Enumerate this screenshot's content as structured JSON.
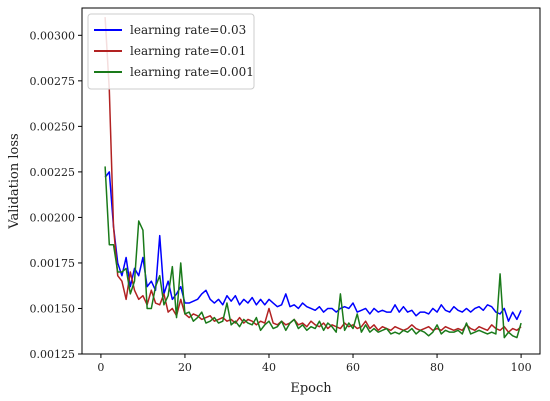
{
  "chart_data": {
    "type": "line",
    "title": "",
    "xlabel": "Epoch",
    "ylabel": "Validation loss",
    "xlim": [
      -4.5,
      104.5
    ],
    "ylim": [
      0.00125,
      0.00315
    ],
    "x_ticks": [
      0,
      20,
      40,
      60,
      80,
      100
    ],
    "y_ticks": [
      0.00125,
      0.0015,
      0.00175,
      0.002,
      0.00225,
      0.0025,
      0.00275,
      0.003
    ],
    "x_tick_labels": [
      "0",
      "20",
      "40",
      "60",
      "80",
      "100"
    ],
    "y_tick_labels": [
      "0.00125",
      "0.00150",
      "0.00175",
      "0.00200",
      "0.00225",
      "0.00250",
      "0.00275",
      "0.00300"
    ],
    "legend_position": "top-left",
    "grid": false,
    "series": [
      {
        "name": "learning rate=0.03",
        "color": "#0000ff",
        "x": [
          1,
          2,
          3,
          4,
          5,
          6,
          7,
          8,
          9,
          10,
          11,
          12,
          13,
          14,
          15,
          16,
          17,
          18,
          19,
          20,
          21,
          22,
          23,
          24,
          25,
          26,
          27,
          28,
          29,
          30,
          31,
          32,
          33,
          34,
          35,
          36,
          37,
          38,
          39,
          40,
          41,
          42,
          43,
          44,
          45,
          46,
          47,
          48,
          49,
          50,
          51,
          52,
          53,
          54,
          55,
          56,
          57,
          58,
          59,
          60,
          61,
          62,
          63,
          64,
          65,
          66,
          67,
          68,
          69,
          70,
          71,
          72,
          73,
          74,
          75,
          76,
          77,
          78,
          79,
          80,
          81,
          82,
          83,
          84,
          85,
          86,
          87,
          88,
          89,
          90,
          91,
          92,
          93,
          94,
          95,
          96,
          97,
          98,
          99,
          100
        ],
        "values": [
          0.00222,
          0.00225,
          0.00195,
          0.00175,
          0.00168,
          0.00178,
          0.00162,
          0.00172,
          0.00168,
          0.00178,
          0.00162,
          0.00165,
          0.0016,
          0.0019,
          0.00158,
          0.00165,
          0.00155,
          0.00158,
          0.00162,
          0.00153,
          0.00153,
          0.00154,
          0.00155,
          0.00158,
          0.0016,
          0.00155,
          0.00153,
          0.00155,
          0.00152,
          0.00157,
          0.00154,
          0.00157,
          0.00152,
          0.00155,
          0.00153,
          0.00156,
          0.00152,
          0.00155,
          0.00152,
          0.00155,
          0.00153,
          0.00151,
          0.00152,
          0.00158,
          0.00151,
          0.00152,
          0.0015,
          0.00153,
          0.00151,
          0.0015,
          0.00149,
          0.00151,
          0.00148,
          0.0015,
          0.0015,
          0.00148,
          0.0015,
          0.00151,
          0.0015,
          0.00153,
          0.00148,
          0.00149,
          0.0015,
          0.00147,
          0.0015,
          0.00148,
          0.00149,
          0.00148,
          0.00148,
          0.00152,
          0.00148,
          0.00151,
          0.00148,
          0.00149,
          0.00146,
          0.00148,
          0.00148,
          0.00147,
          0.0015,
          0.00148,
          0.00152,
          0.00149,
          0.00148,
          0.00151,
          0.00149,
          0.00148,
          0.0015,
          0.00148,
          0.0015,
          0.00151,
          0.00149,
          0.00152,
          0.00151,
          0.00148,
          0.00147,
          0.0015,
          0.00143,
          0.00148,
          0.00144,
          0.00149
        ]
      },
      {
        "name": "learning rate=0.01",
        "color": "#b22222",
        "x": [
          1,
          2,
          3,
          4,
          5,
          6,
          7,
          8,
          9,
          10,
          11,
          12,
          13,
          14,
          15,
          16,
          17,
          18,
          19,
          20,
          21,
          22,
          23,
          24,
          25,
          26,
          27,
          28,
          29,
          30,
          31,
          32,
          33,
          34,
          35,
          36,
          37,
          38,
          39,
          40,
          41,
          42,
          43,
          44,
          45,
          46,
          47,
          48,
          49,
          50,
          51,
          52,
          53,
          54,
          55,
          56,
          57,
          58,
          59,
          60,
          61,
          62,
          63,
          64,
          65,
          66,
          67,
          68,
          69,
          70,
          71,
          72,
          73,
          74,
          75,
          76,
          77,
          78,
          79,
          80,
          81,
          82,
          83,
          84,
          85,
          86,
          87,
          88,
          89,
          90,
          91,
          92,
          93,
          94,
          95,
          96,
          97,
          98,
          99,
          100
        ],
        "values": [
          0.0031,
          0.0027,
          0.00195,
          0.00168,
          0.00165,
          0.00155,
          0.0017,
          0.0016,
          0.00155,
          0.00157,
          0.00152,
          0.0016,
          0.00153,
          0.00152,
          0.00158,
          0.00148,
          0.0015,
          0.00146,
          0.00155,
          0.00147,
          0.00145,
          0.00147,
          0.00146,
          0.00144,
          0.00145,
          0.00146,
          0.00143,
          0.00144,
          0.00145,
          0.00143,
          0.00144,
          0.00142,
          0.00145,
          0.00142,
          0.00144,
          0.00143,
          0.00141,
          0.00143,
          0.00142,
          0.0015,
          0.00142,
          0.00141,
          0.00143,
          0.00141,
          0.00142,
          0.00144,
          0.00141,
          0.00142,
          0.0014,
          0.00143,
          0.00141,
          0.0014,
          0.00142,
          0.00139,
          0.00141,
          0.0014,
          0.00139,
          0.00142,
          0.0014,
          0.00141,
          0.00139,
          0.0014,
          0.00143,
          0.00139,
          0.00141,
          0.00138,
          0.0014,
          0.00139,
          0.00138,
          0.0014,
          0.00139,
          0.00138,
          0.00139,
          0.00141,
          0.00139,
          0.00138,
          0.00139,
          0.0014,
          0.00138,
          0.00139,
          0.00138,
          0.0014,
          0.00139,
          0.00138,
          0.00139,
          0.00138,
          0.00141,
          0.00139,
          0.00138,
          0.0014,
          0.00139,
          0.00138,
          0.00141,
          0.00139,
          0.00138,
          0.0014,
          0.00137,
          0.00139,
          0.00138,
          0.0014
        ]
      },
      {
        "name": "learning rate=0.001",
        "color": "#1a7a1a",
        "x": [
          1,
          2,
          3,
          4,
          5,
          6,
          7,
          8,
          9,
          10,
          11,
          12,
          13,
          14,
          15,
          16,
          17,
          18,
          19,
          20,
          21,
          22,
          23,
          24,
          25,
          26,
          27,
          28,
          29,
          30,
          31,
          32,
          33,
          34,
          35,
          36,
          37,
          38,
          39,
          40,
          41,
          42,
          43,
          44,
          45,
          46,
          47,
          48,
          49,
          50,
          51,
          52,
          53,
          54,
          55,
          56,
          57,
          58,
          59,
          60,
          61,
          62,
          63,
          64,
          65,
          66,
          67,
          68,
          69,
          70,
          71,
          72,
          73,
          74,
          75,
          76,
          77,
          78,
          79,
          80,
          81,
          82,
          83,
          84,
          85,
          86,
          87,
          88,
          89,
          90,
          91,
          92,
          93,
          94,
          95,
          96,
          97,
          98,
          99,
          100
        ],
        "values": [
          0.00228,
          0.00185,
          0.00185,
          0.0017,
          0.0017,
          0.00172,
          0.00158,
          0.00165,
          0.00198,
          0.00193,
          0.0015,
          0.0015,
          0.00162,
          0.00168,
          0.00152,
          0.00157,
          0.00173,
          0.00145,
          0.00175,
          0.00147,
          0.00148,
          0.00143,
          0.00145,
          0.00148,
          0.00142,
          0.00143,
          0.00145,
          0.00142,
          0.00143,
          0.00153,
          0.00141,
          0.00143,
          0.0014,
          0.00144,
          0.00142,
          0.00141,
          0.00145,
          0.00138,
          0.00141,
          0.00143,
          0.00139,
          0.0014,
          0.00143,
          0.00138,
          0.00142,
          0.00144,
          0.00139,
          0.00141,
          0.00138,
          0.0014,
          0.00139,
          0.00143,
          0.00138,
          0.00142,
          0.0014,
          0.00137,
          0.00158,
          0.00138,
          0.00142,
          0.00139,
          0.00147,
          0.00137,
          0.00141,
          0.00137,
          0.00139,
          0.00137,
          0.00138,
          0.00139,
          0.00136,
          0.00137,
          0.00136,
          0.00138,
          0.00137,
          0.00139,
          0.00136,
          0.00138,
          0.00137,
          0.00135,
          0.00137,
          0.00141,
          0.00136,
          0.00138,
          0.00137,
          0.00137,
          0.00138,
          0.00136,
          0.00142,
          0.00136,
          0.00137,
          0.00138,
          0.00137,
          0.00136,
          0.00137,
          0.00136,
          0.00169,
          0.00134,
          0.00137,
          0.00135,
          0.00134,
          0.00142
        ]
      }
    ]
  }
}
